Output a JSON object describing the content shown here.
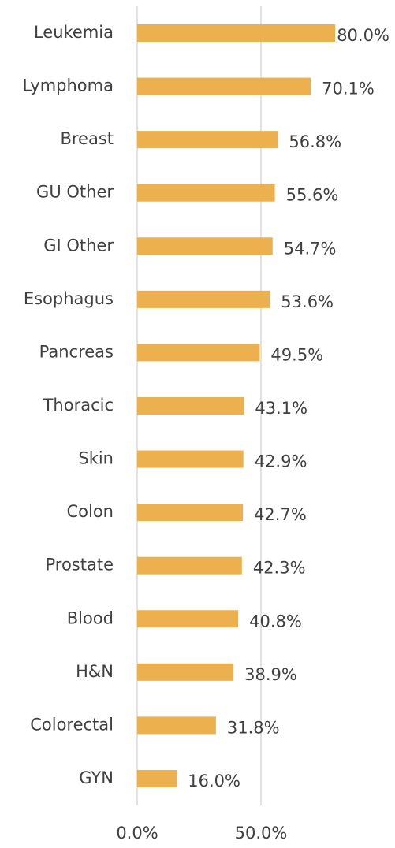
{
  "chart_data": {
    "type": "bar",
    "orientation": "horizontal",
    "categories": [
      "Leukemia",
      "Lymphoma",
      "Breast",
      "GU Other",
      "GI Other",
      "Esophagus",
      "Pancreas",
      "Thoracic",
      "Skin",
      "Colon",
      "Prostate",
      "Blood",
      "H&N",
      "Colorectal",
      "GYN"
    ],
    "values": [
      80.0,
      70.1,
      56.8,
      55.6,
      54.7,
      53.6,
      49.5,
      43.1,
      42.9,
      42.7,
      42.3,
      40.8,
      38.9,
      31.8,
      16.0
    ],
    "value_labels": [
      "80.0%",
      "70.1%",
      "56.8%",
      "55.6%",
      "54.7%",
      "53.6%",
      "49.5%",
      "43.1%",
      "42.9%",
      "42.7%",
      "42.3%",
      "40.8%",
      "38.9%",
      "31.8%",
      "16.0%"
    ],
    "color": "#ecb04e",
    "xlim": [
      0,
      100
    ],
    "xticks": [
      {
        "value": 0,
        "label": "0.0%"
      },
      {
        "value": 50,
        "label": "50.0%"
      }
    ],
    "grid": true
  }
}
